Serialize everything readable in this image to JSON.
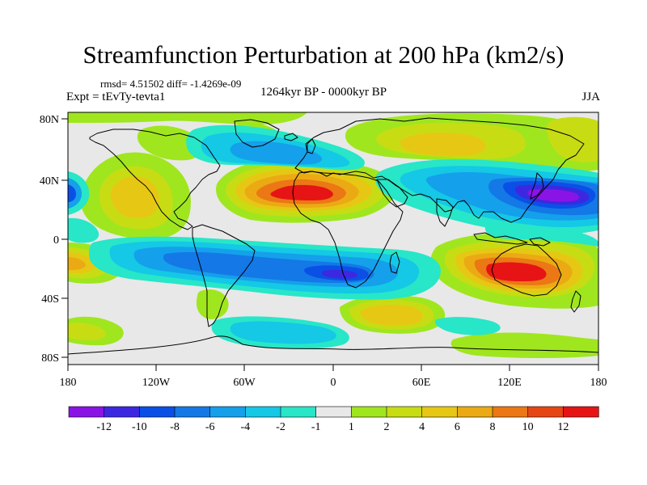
{
  "title": "Streamfunction Perturbation at 200 hPa (km2/s)",
  "stats": "rmsd= 4.51502 diff= -1.4269e-09",
  "experiment": "Expt = tEvTy-tevta1",
  "period": "1264kyr BP - 0000kyr BP",
  "season": "JJA",
  "lat_labels": [
    "80N",
    "40N",
    "0",
    "40S",
    "80S"
  ],
  "lon_labels": [
    "180",
    "120W",
    "60W",
    "0",
    "60E",
    "120E",
    "180"
  ],
  "colorbar": {
    "labels": [
      "-12",
      "-10",
      "-8",
      "-6",
      "-4",
      "-2",
      "-1",
      "1",
      "2",
      "4",
      "6",
      "8",
      "10",
      "12"
    ],
    "colors": [
      "#8a14e6",
      "#3c28e1",
      "#0a50e6",
      "#1478e6",
      "#14a0eb",
      "#14c8e6",
      "#28e6c8",
      "#e8e8e8",
      "#a0e61e",
      "#c8dc14",
      "#e6c814",
      "#ebaa14",
      "#eb7814",
      "#e64614",
      "#e61414"
    ]
  },
  "colors": {
    "neutral": "#e8e8e8",
    "coast": "#000000"
  }
}
